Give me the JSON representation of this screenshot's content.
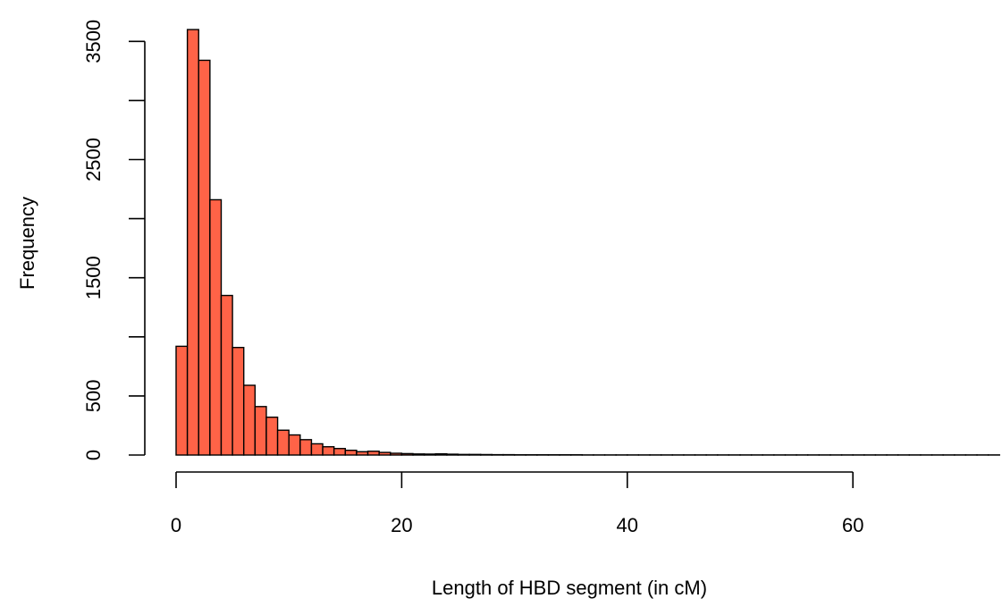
{
  "chart_data": {
    "type": "bar",
    "subtype": "histogram",
    "title": "",
    "xlabel": "Length of HBD segment (in cM)",
    "ylabel": "Frequency",
    "bin_width": 1,
    "bin_start": 0,
    "xlim": [
      0,
      73
    ],
    "ylim": [
      0,
      3600
    ],
    "x_ticks": [
      0,
      20,
      40,
      60
    ],
    "y_ticks": [
      0,
      500,
      1500,
      2500,
      3500
    ],
    "values": [
      920,
      3600,
      3340,
      2160,
      1350,
      910,
      590,
      410,
      320,
      210,
      170,
      130,
      95,
      70,
      55,
      40,
      28,
      32,
      22,
      15,
      12,
      9,
      8,
      10,
      7,
      5,
      5,
      4,
      3,
      3,
      2,
      2,
      2,
      2,
      2,
      2,
      1,
      1,
      1,
      1,
      1,
      1,
      1,
      1,
      1,
      1,
      1,
      1,
      1,
      1,
      1,
      1,
      1,
      1,
      1,
      1,
      1,
      1,
      1,
      1,
      1,
      1,
      1,
      1,
      1,
      1,
      1,
      1,
      1,
      1,
      1,
      1,
      1
    ],
    "bar_color": "#FF6347",
    "edge_color": "#000000",
    "grid": false
  }
}
